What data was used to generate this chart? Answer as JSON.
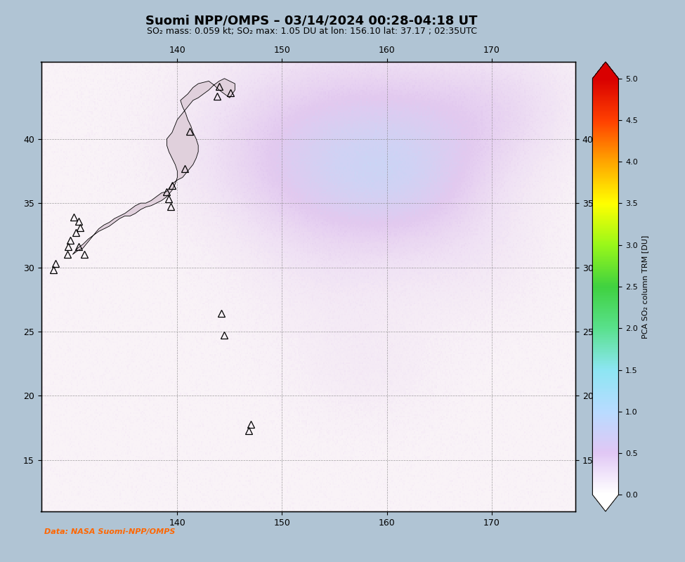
{
  "title": "Suomi NPP/OMPS – 03/14/2024 00:28-04:18 UT",
  "subtitle": "SO₂ mass: 0.059 kt; SO₂ max: 1.05 DU at lon: 156.10 lat: 37.17 ; 02:35UTC",
  "data_credit": "Data: NASA Suomi-NPP/OMPS",
  "data_credit_color": "#ff6600",
  "lon_min": 127.0,
  "lon_max": 178.0,
  "lat_min": 11.0,
  "lat_max": 46.0,
  "xticks": [
    140,
    150,
    160,
    170
  ],
  "yticks": [
    15,
    20,
    25,
    30,
    35,
    40
  ],
  "colorbar_label": "PCA SO₂ column TRM [DU]",
  "colorbar_ticks": [
    0.0,
    0.5,
    1.0,
    1.5,
    2.0,
    2.5,
    3.0,
    3.5,
    4.0,
    4.5,
    5.0
  ],
  "vmin": 0.0,
  "vmax": 5.0,
  "fig_bg_color": "#b0c4d4",
  "map_bg_color": "#e8d0e0",
  "title_fontsize": 13,
  "subtitle_fontsize": 9,
  "credit_fontsize": 8,
  "volcano_markers": [
    {
      "lon": 144.0,
      "lat": 44.1
    },
    {
      "lon": 145.1,
      "lat": 43.6
    },
    {
      "lon": 143.8,
      "lat": 43.3
    },
    {
      "lon": 141.2,
      "lat": 40.6
    },
    {
      "lon": 140.7,
      "lat": 37.7
    },
    {
      "lon": 139.5,
      "lat": 36.4
    },
    {
      "lon": 139.0,
      "lat": 35.9
    },
    {
      "lon": 139.2,
      "lat": 35.35
    },
    {
      "lon": 139.4,
      "lat": 34.75
    },
    {
      "lon": 130.6,
      "lat": 31.6
    },
    {
      "lon": 131.1,
      "lat": 31.0
    },
    {
      "lon": 130.3,
      "lat": 32.7
    },
    {
      "lon": 130.7,
      "lat": 33.1
    },
    {
      "lon": 130.6,
      "lat": 33.6
    },
    {
      "lon": 130.1,
      "lat": 33.9
    },
    {
      "lon": 129.8,
      "lat": 32.1
    },
    {
      "lon": 129.6,
      "lat": 31.6
    },
    {
      "lon": 129.5,
      "lat": 31.0
    },
    {
      "lon": 128.4,
      "lat": 30.3
    },
    {
      "lon": 128.2,
      "lat": 29.8
    },
    {
      "lon": 144.2,
      "lat": 26.4
    },
    {
      "lon": 144.5,
      "lat": 24.7
    },
    {
      "lon": 147.0,
      "lat": 17.8
    },
    {
      "lon": 146.8,
      "lat": 17.3
    }
  ],
  "so2_blobs": [
    {
      "lon": 155.0,
      "lat": 42.5,
      "val": 0.2,
      "sigx": 9,
      "sigy": 5
    },
    {
      "lon": 163.0,
      "lat": 42.0,
      "val": 0.16,
      "sigx": 6,
      "sigy": 3
    },
    {
      "lon": 170.0,
      "lat": 40.5,
      "val": 0.14,
      "sigx": 5,
      "sigy": 3
    },
    {
      "lon": 152.0,
      "lat": 38.5,
      "val": 0.22,
      "sigx": 7,
      "sigy": 4
    },
    {
      "lon": 160.0,
      "lat": 36.5,
      "val": 0.18,
      "sigx": 5,
      "sigy": 3
    },
    {
      "lon": 157.0,
      "lat": 37.2,
      "val": 0.3,
      "sigx": 7,
      "sigy": 4
    },
    {
      "lon": 172.0,
      "lat": 44.0,
      "val": 0.12,
      "sigx": 5,
      "sigy": 3
    },
    {
      "lon": 155.0,
      "lat": 30.0,
      "val": 0.1,
      "sigx": 6,
      "sigy": 4
    },
    {
      "lon": 168.0,
      "lat": 32.0,
      "val": 0.12,
      "sigx": 5,
      "sigy": 4
    },
    {
      "lon": 158.0,
      "lat": 22.0,
      "val": 0.08,
      "sigx": 5,
      "sigy": 3
    },
    {
      "lon": 163.5,
      "lat": 37.0,
      "val": 0.14,
      "sigx": 4,
      "sigy": 3
    }
  ]
}
